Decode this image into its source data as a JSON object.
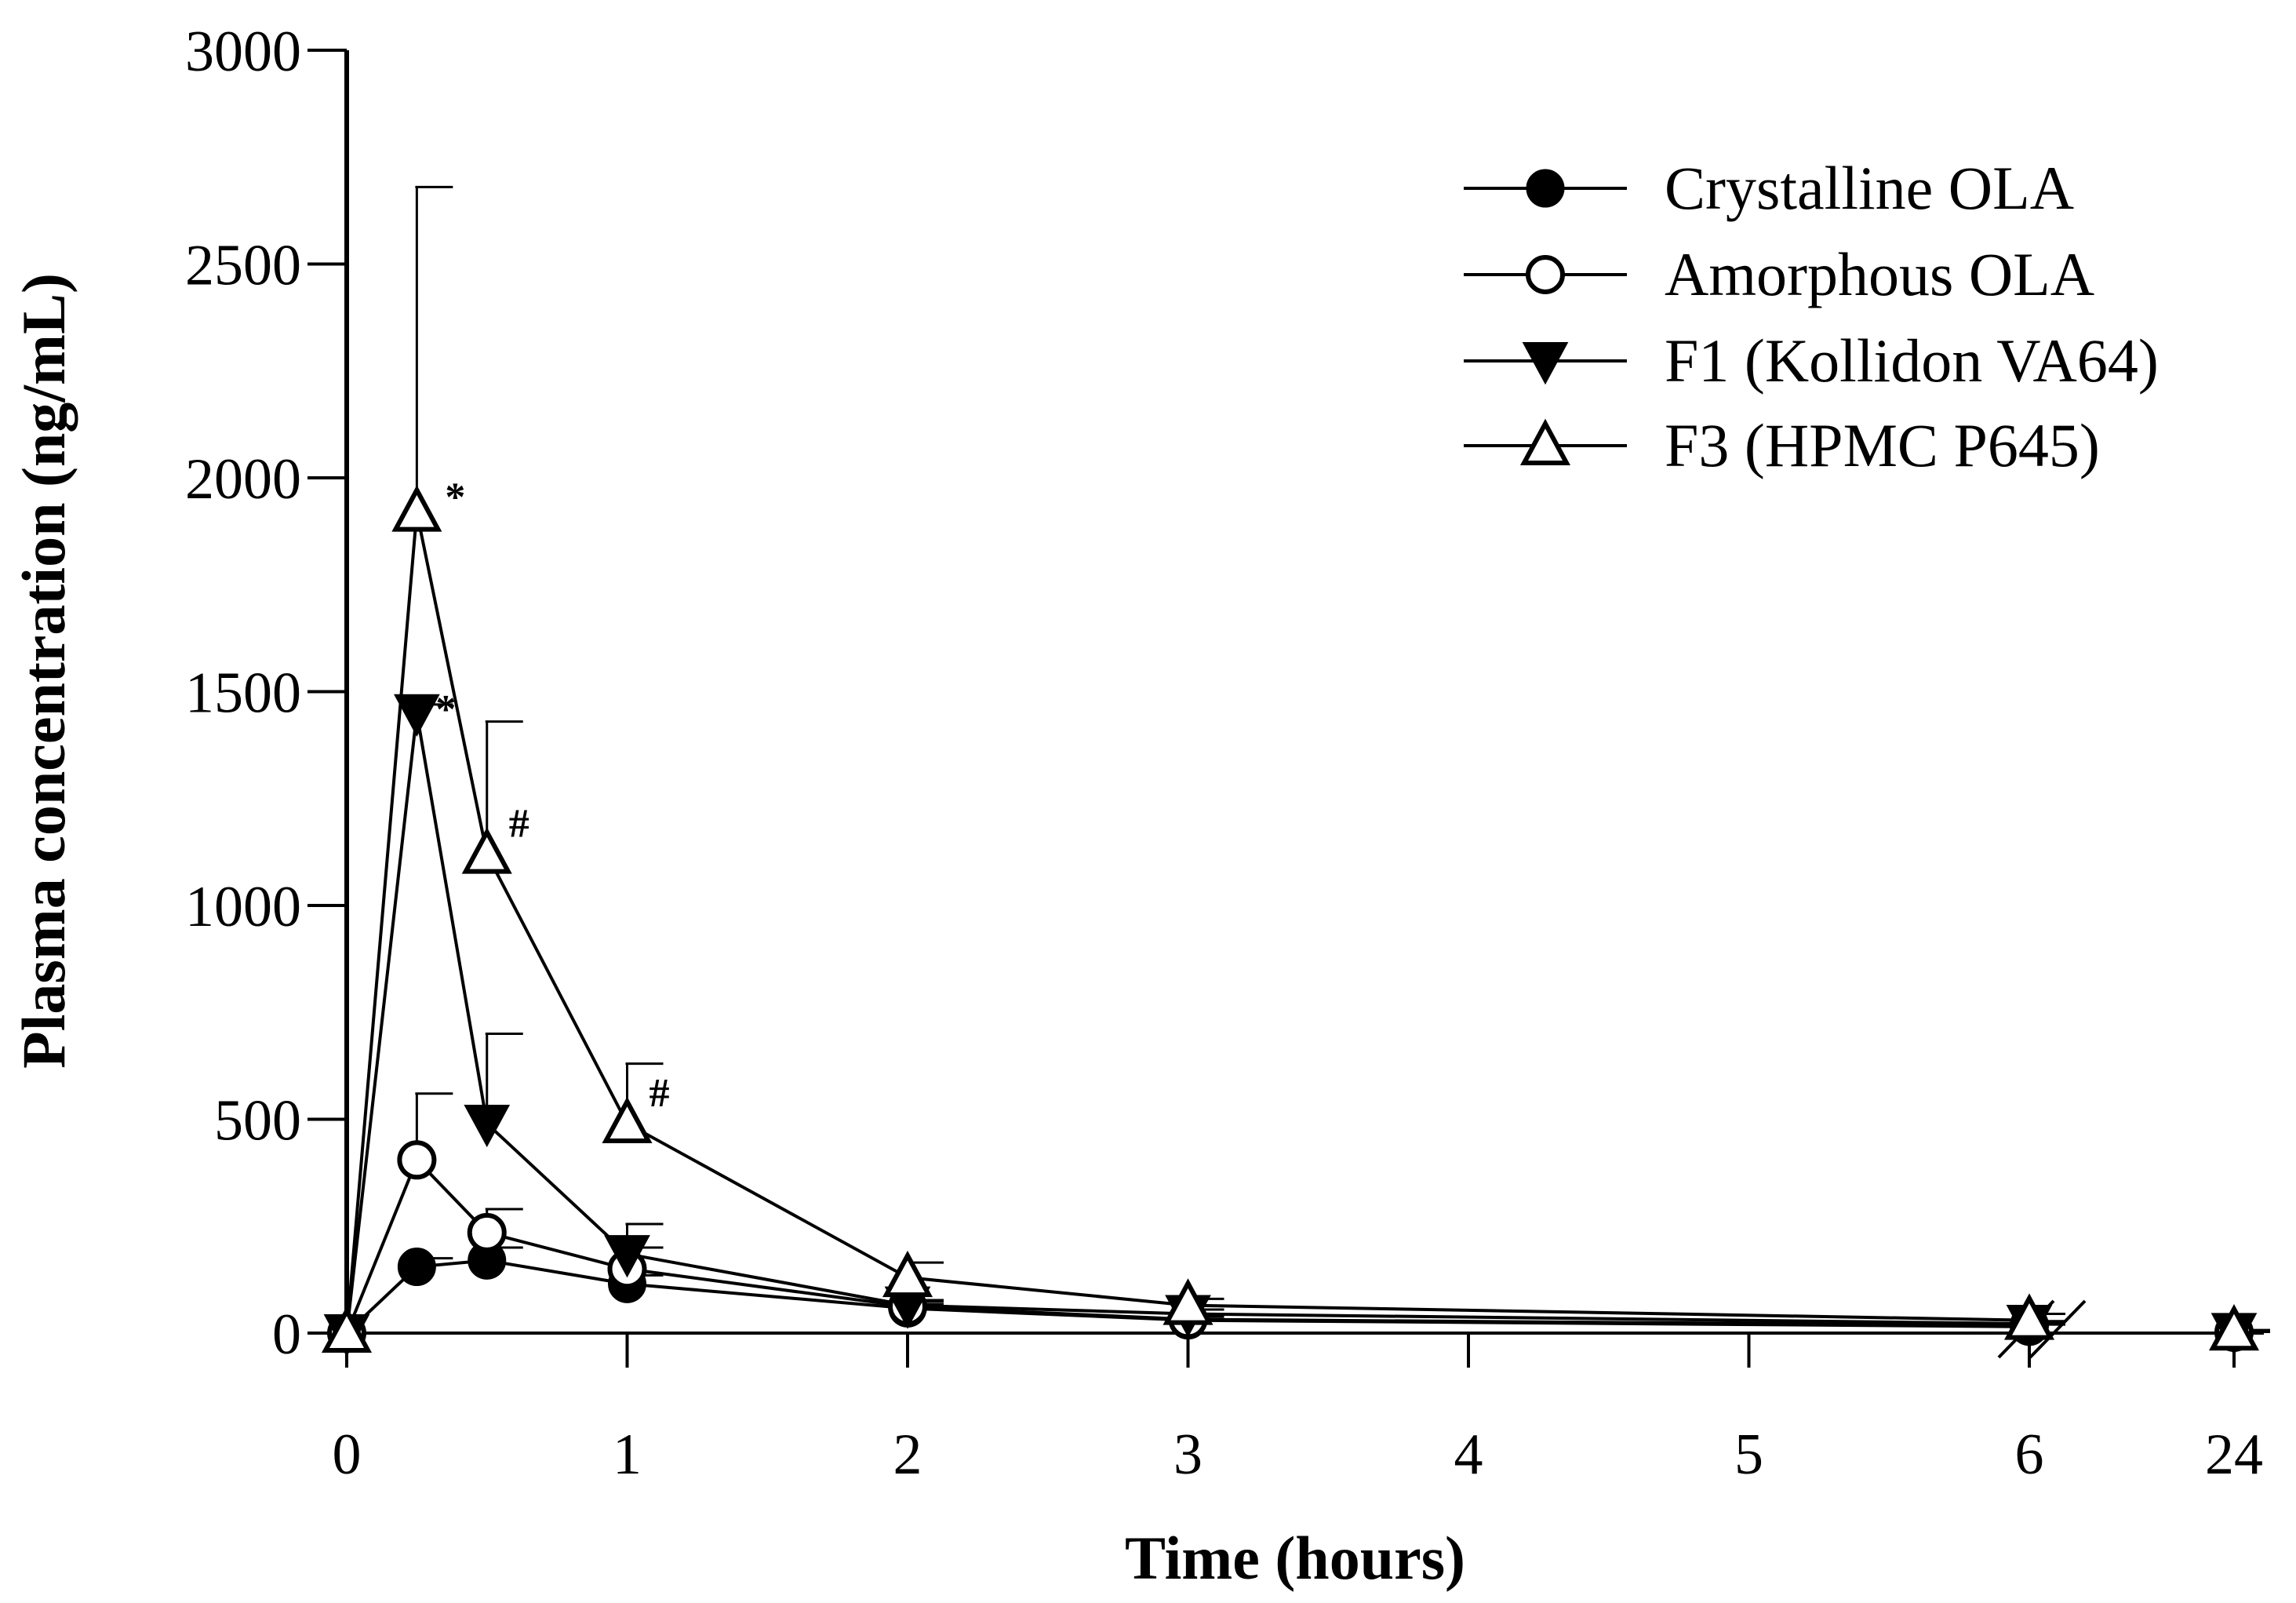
{
  "chart_data": {
    "type": "line",
    "title": "",
    "xlabel": "Time (hours)",
    "ylabel": "Plasma concentration (ng/mL)",
    "ylim": [
      0,
      3000
    ],
    "y_ticks": [
      0,
      500,
      1000,
      1500,
      2000,
      2500,
      3000
    ],
    "y_tick_labels": [
      "0",
      "500",
      "1000",
      "1500",
      "2000",
      "2500",
      "3000"
    ],
    "x_tick_labels": [
      "0",
      "1",
      "2",
      "3",
      "4",
      "5",
      "6",
      "24"
    ],
    "x_axis_break": "between 6 and 24",
    "x": [
      0,
      0.25,
      0.5,
      1,
      2,
      3,
      6,
      24
    ],
    "legend_position": "top-right",
    "grid": false,
    "series": [
      {
        "name": "Crystalline OLA",
        "marker": "filled-circle",
        "values": [
          0,
          155,
          170,
          115,
          58,
          30,
          15,
          2
        ],
        "error": [
          0,
          20,
          30,
          20,
          10,
          8,
          5,
          1
        ]
      },
      {
        "name": "Amorphous OLA",
        "marker": "open-circle",
        "values": [
          0,
          405,
          235,
          150,
          62,
          32,
          18,
          2
        ],
        "error": [
          0,
          155,
          55,
          50,
          12,
          8,
          5,
          1
        ]
      },
      {
        "name": "F1 (Kollidon VA64)",
        "marker": "filled-triangle-down",
        "values": [
          0,
          1450,
          490,
          185,
          65,
          45,
          22,
          3
        ],
        "error": [
          0,
          20,
          210,
          70,
          12,
          10,
          6,
          1
        ]
      },
      {
        "name": "F3 (HPMC P645)",
        "marker": "open-triangle-up",
        "values": [
          0,
          1920,
          1120,
          490,
          130,
          65,
          30,
          5
        ],
        "error": [
          0,
          760,
          310,
          140,
          35,
          15,
          15,
          2
        ]
      }
    ],
    "annotations": [
      {
        "text": "*",
        "series": "F3 (HPMC P645)",
        "x": 0.25
      },
      {
        "text": "*",
        "series": "F1 (Kollidon VA64)",
        "x": 0.25
      },
      {
        "text": "#",
        "series": "F3 (HPMC P645)",
        "x": 0.5
      },
      {
        "text": "#",
        "series": "F3 (HPMC P645)",
        "x": 1
      }
    ]
  }
}
